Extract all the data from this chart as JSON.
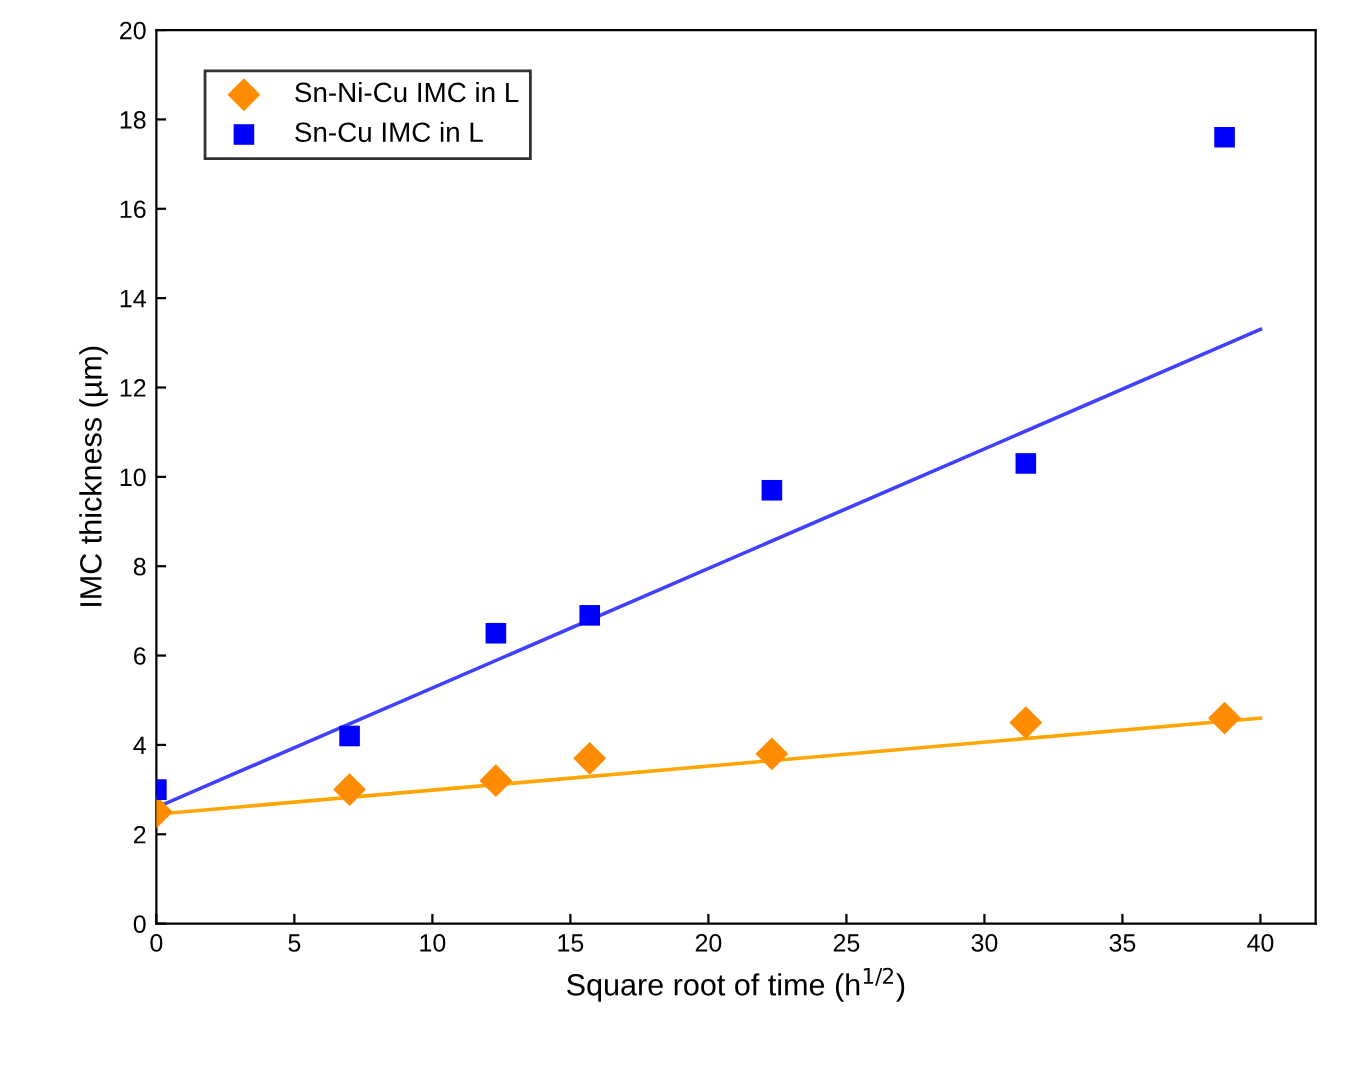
{
  "chart_data": {
    "type": "scatter",
    "xlabel": "Square root of time (h$^{1/2}$)",
    "ylabel": "IMC thickness (µm)",
    "xlim": [
      0,
      42
    ],
    "ylim": [
      0,
      20
    ],
    "xticks": [
      0,
      5,
      10,
      15,
      20,
      25,
      30,
      35,
      40
    ],
    "yticks": [
      0,
      2,
      4,
      6,
      8,
      10,
      12,
      14,
      16,
      18,
      20
    ],
    "grid": false,
    "legend": "top left",
    "series": [
      {
        "name": "Sn-Ni-Cu IMC in L",
        "color": "#ff8c00",
        "marker": "diamond",
        "x": [
          0,
          7,
          12.3,
          15.7,
          22.3,
          31.5,
          38.7
        ],
        "values": [
          2.5,
          3.0,
          3.2,
          3.7,
          3.8,
          4.5,
          4.6
        ]
      },
      {
        "name": "Sn-Cu IMC in L",
        "color": "#0000ff",
        "marker": "square",
        "x": [
          0,
          7,
          12.3,
          15.7,
          22.3,
          31.5,
          38.7
        ],
        "values": [
          3.0,
          4.2,
          6.5,
          6.9,
          9.7,
          10.3,
          17.6
        ]
      },
      {
        "type": "line",
        "color": "#ffa500",
        "marker": "none",
        "x": [
          0,
          40
        ],
        "values": [
          2.45,
          4.6
        ]
      },
      {
        "type": "line",
        "color": "#4040ff",
        "marker": "none",
        "x": [
          0,
          40
        ],
        "values": [
          2.6,
          13.3
        ]
      }
    ]
  }
}
